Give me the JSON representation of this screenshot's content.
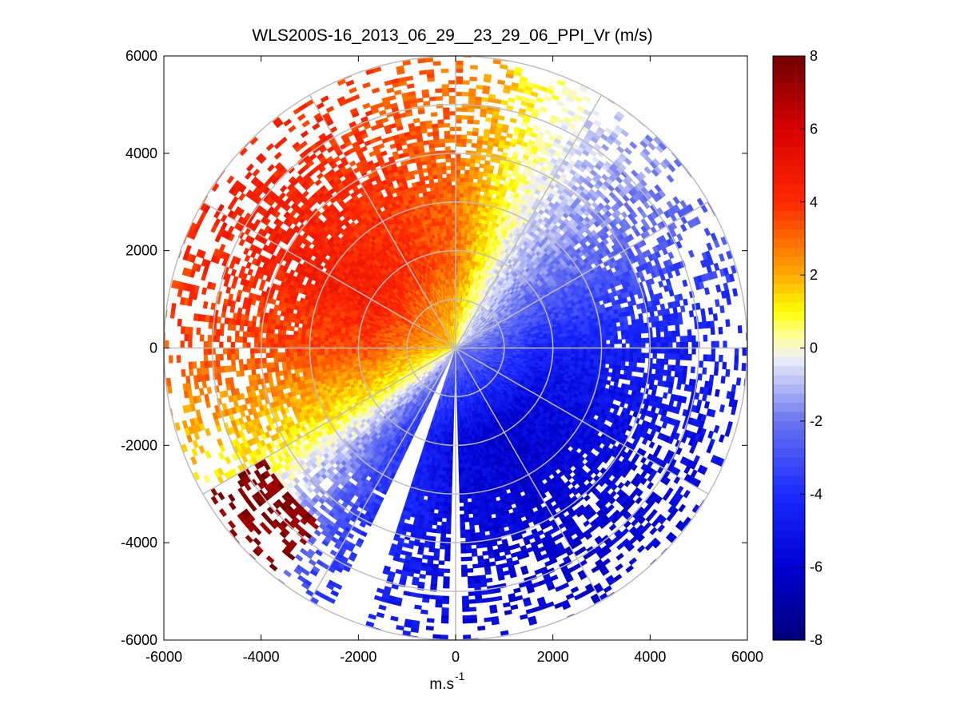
{
  "chart_data": {
    "type": "heatmap",
    "subtype": "polar-ppi-scan",
    "title": "WLS200S-16_2013_06_29__23_29_06_PPI_Vr (m/s)",
    "xlabel": "m.s",
    "xlabel_superscript": "-1",
    "ylabel": "",
    "xlim": [
      -6000,
      6000
    ],
    "ylim": [
      -6000,
      6000
    ],
    "x_ticks": [
      -6000,
      -4000,
      -2000,
      0,
      2000,
      4000,
      6000
    ],
    "y_ticks": [
      6000,
      4000,
      2000,
      0,
      -2000,
      -4000,
      -6000
    ],
    "x_tick_labels": [
      "-6000",
      "-4000",
      "-2000",
      "0",
      "2000",
      "4000",
      "6000"
    ],
    "y_tick_labels": [
      "6000",
      "4000",
      "2000",
      "0",
      "-2000",
      "-4000",
      "-6000"
    ],
    "polar_grid": {
      "range_rings": [
        1000,
        2000,
        3000,
        4000,
        5000,
        6000
      ],
      "spoke_angles_deg": [
        0,
        30,
        60,
        90,
        120,
        150,
        180,
        210,
        240,
        270,
        300,
        330
      ]
    },
    "colorbar": {
      "min": -8,
      "max": 8,
      "ticks": [
        8,
        6,
        4,
        2,
        0,
        -2,
        -4,
        -6,
        -8
      ],
      "tick_labels": [
        "8",
        "6",
        "4",
        "2",
        "0",
        "-2",
        "-4",
        "-6",
        "-8"
      ],
      "colormap_stops": [
        {
          "value": -8,
          "color": "#00007a"
        },
        {
          "value": -6,
          "color": "#0000d2"
        },
        {
          "value": -4,
          "color": "#1a2aff"
        },
        {
          "value": -2,
          "color": "#6a74ef"
        },
        {
          "value": -0.3,
          "color": "#eceef8"
        },
        {
          "value": 0.3,
          "color": "#ffffa0"
        },
        {
          "value": 1.0,
          "color": "#ffff00"
        },
        {
          "value": 2,
          "color": "#ffaa00"
        },
        {
          "value": 4,
          "color": "#ff2800"
        },
        {
          "value": 6,
          "color": "#d80000"
        },
        {
          "value": 8,
          "color": "#700000"
        }
      ]
    },
    "approx_velocity_field": {
      "description_of_values": "radial velocity by azimuth (deg, clockwise from north)",
      "azimuth_deg": [
        0,
        30,
        60,
        90,
        120,
        150,
        180,
        210,
        240,
        270,
        300,
        330
      ],
      "vr_m_s": [
        3.0,
        -0.5,
        -2.5,
        -4.5,
        -5.5,
        -6.0,
        -5.5,
        -3.5,
        1.0,
        3.5,
        4.5,
        4.0
      ],
      "max_range_m": 6000,
      "blanked_sectors_deg": [
        [
          178,
          181
        ],
        [
          198,
          205
        ]
      ],
      "far_sw_sector_vr_m_s": 7.5
    }
  }
}
